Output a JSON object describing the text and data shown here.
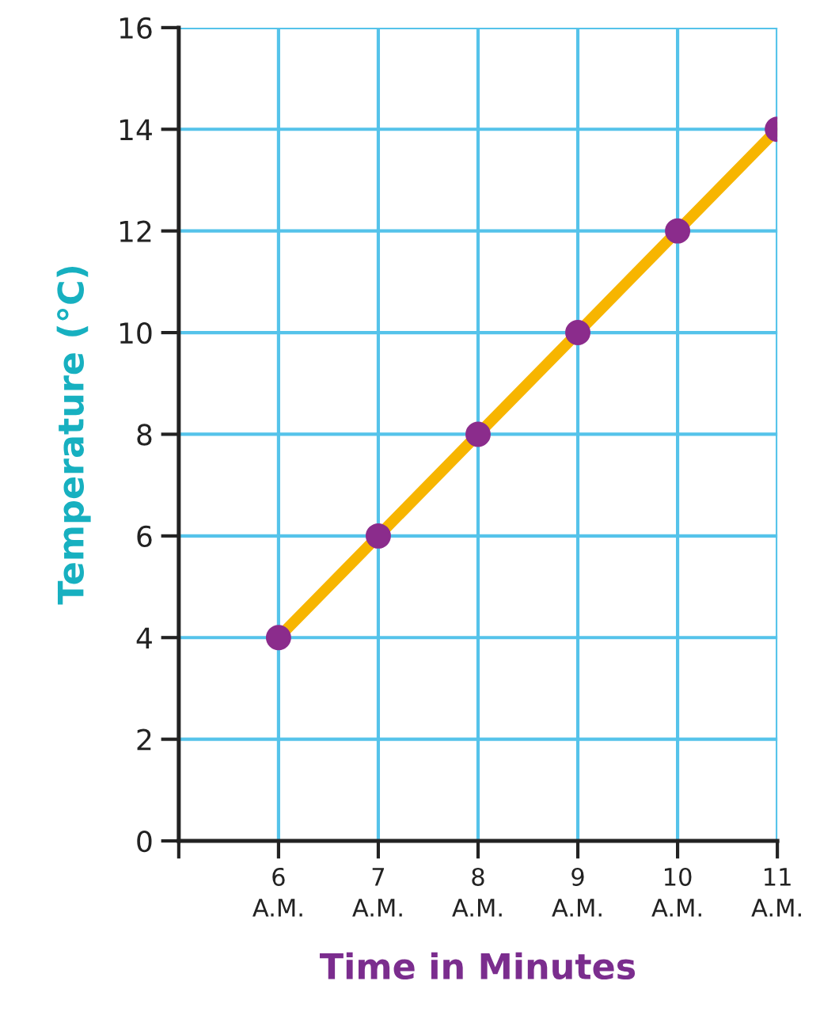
{
  "chart_data": {
    "type": "line",
    "xlabel": "Time in Minutes",
    "ylabel": "Temperature (°C)",
    "x": [
      6,
      7,
      8,
      9,
      10,
      11
    ],
    "series": [
      {
        "color": "#f7b500",
        "values": [
          4,
          6,
          8,
          10,
          12,
          14
        ],
        "marker": "none",
        "line_style": "solid"
      },
      {
        "type": "scatter",
        "color": "#8b2c8c",
        "values": [
          4,
          6,
          8,
          10,
          12,
          14
        ],
        "marker": "circle"
      }
    ],
    "xlim": [
      5,
      11
    ],
    "ylim": [
      0,
      16
    ],
    "xticks": [
      {
        "value": 5,
        "label": null
      },
      {
        "value": 6,
        "label": "6\nA.M."
      },
      {
        "value": 7,
        "label": "7\nA.M."
      },
      {
        "value": 8,
        "label": "8\nA.M."
      },
      {
        "value": 9,
        "label": "9\nA.M."
      },
      {
        "value": 10,
        "label": "10\nA.M."
      },
      {
        "value": 11,
        "label": "11\nA.M."
      }
    ],
    "yticks": [
      0,
      2,
      4,
      6,
      8,
      10,
      12,
      14,
      16
    ],
    "grid": true
  }
}
